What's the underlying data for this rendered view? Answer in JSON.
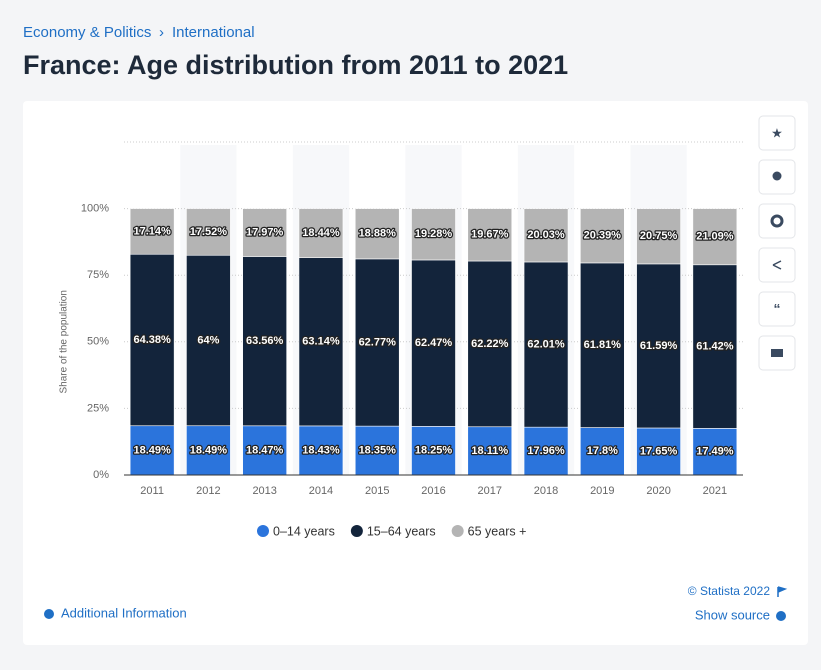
{
  "header": {
    "breadcrumb": [
      "Economy & Politics",
      "International"
    ],
    "separator": "›",
    "title": "France: Age distribution from 2011 to 2021"
  },
  "chart_data": {
    "type": "stacked-bar",
    "categories": [
      "2011",
      "2012",
      "2013",
      "2014",
      "2015",
      "2016",
      "2017",
      "2018",
      "2019",
      "2020",
      "2021"
    ],
    "y_label": "Share of the population",
    "ylim": [
      0,
      125
    ],
    "yticks": [
      {
        "value": 0,
        "label": "0%"
      },
      {
        "value": 25,
        "label": "25%"
      },
      {
        "value": 50,
        "label": "50%"
      },
      {
        "value": 75,
        "label": "75%"
      },
      {
        "value": 100,
        "label": "100%"
      }
    ],
    "grid": true,
    "legend": "bottom",
    "series": [
      {
        "name": "0–14 years",
        "color": "#2b74dc",
        "values": [
          18.49,
          18.49,
          18.47,
          18.43,
          18.35,
          18.25,
          18.11,
          17.96,
          17.8,
          17.65,
          17.49
        ],
        "value_labels": [
          "18.49%",
          "18.49%",
          "18.47%",
          "18.43%",
          "18.35%",
          "18.25%",
          "18.11%",
          "17.96%",
          "17.8%",
          "17.65%",
          "17.49%"
        ]
      },
      {
        "name": "15–64 years",
        "color": "#13243b",
        "values": [
          64.38,
          64,
          63.56,
          63.14,
          62.77,
          62.47,
          62.22,
          62.01,
          61.81,
          61.59,
          61.42
        ],
        "value_labels": [
          "64.38%",
          "64%",
          "63.56%",
          "63.14%",
          "62.77%",
          "62.47%",
          "62.22%",
          "62.01%",
          "61.81%",
          "61.59%",
          "61.42%"
        ]
      },
      {
        "name": "65 years +",
        "color": "#b4b4b4",
        "values": [
          17.14,
          17.52,
          17.97,
          18.44,
          18.88,
          19.28,
          19.67,
          20.03,
          20.39,
          20.75,
          21.09
        ],
        "value_labels": [
          "17.14%",
          "17.52%",
          "17.97%",
          "18.44%",
          "18.88%",
          "19.28%",
          "19.67%",
          "20.03%",
          "20.39%",
          "20.75%",
          "21.09%"
        ]
      }
    ]
  },
  "footer": {
    "copyright": "© Statista 2022",
    "source": "Show source",
    "info": "Additional Information"
  }
}
